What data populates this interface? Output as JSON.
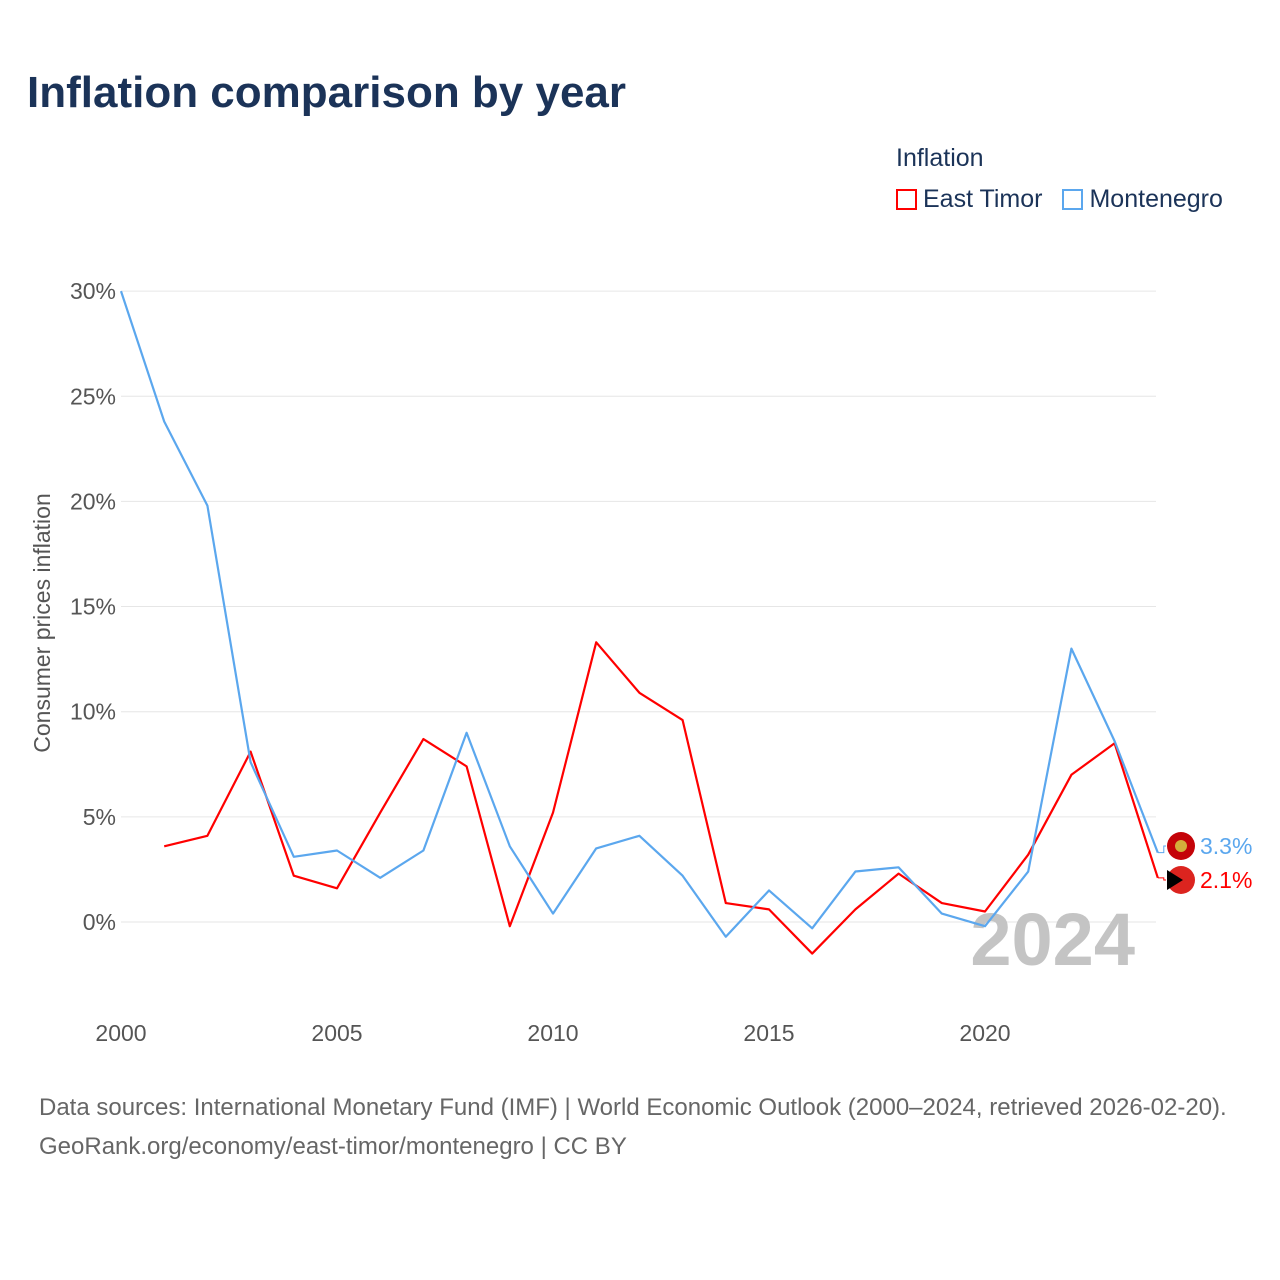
{
  "chart_data": {
    "type": "line",
    "title": "Inflation comparison by year",
    "legend_title": "Inflation",
    "legend_position": "top-right",
    "ylabel": "Consumer prices inflation",
    "xlabel": "",
    "xlim": [
      2000,
      2024
    ],
    "ylim": [
      -3.5,
      30
    ],
    "x_ticks": [
      2000,
      2005,
      2010,
      2015,
      2020
    ],
    "x_tick_labels": [
      "2000",
      "2005",
      "2010",
      "2015",
      "2020"
    ],
    "y_ticks": [
      0,
      5,
      10,
      15,
      20,
      25,
      30
    ],
    "y_tick_labels": [
      "0%",
      "5%",
      "10%",
      "15%",
      "20%",
      "25%",
      "30%"
    ],
    "grid": true,
    "year_watermark": "2024",
    "series": [
      {
        "name": "East Timor",
        "color": "#ff0000",
        "end_label": "2.1%",
        "x": [
          2001,
          2002,
          2003,
          2004,
          2005,
          2006,
          2007,
          2008,
          2009,
          2010,
          2011,
          2012,
          2013,
          2014,
          2015,
          2016,
          2017,
          2018,
          2019,
          2020,
          2021,
          2022,
          2023,
          2024
        ],
        "values": [
          3.6,
          4.1,
          8.1,
          2.2,
          1.6,
          5.2,
          8.7,
          7.4,
          -0.2,
          5.2,
          13.3,
          10.9,
          9.6,
          0.9,
          0.6,
          -1.5,
          0.6,
          2.3,
          0.9,
          0.5,
          3.2,
          7.0,
          8.5,
          2.1
        ]
      },
      {
        "name": "Montenegro",
        "color": "#5ba7ee",
        "end_label": "3.3%",
        "x": [
          2000,
          2001,
          2002,
          2003,
          2004,
          2005,
          2006,
          2007,
          2008,
          2009,
          2010,
          2011,
          2012,
          2013,
          2014,
          2015,
          2016,
          2017,
          2018,
          2019,
          2020,
          2021,
          2022,
          2023,
          2024
        ],
        "values": [
          30.0,
          23.8,
          19.8,
          7.6,
          3.1,
          3.4,
          2.1,
          3.4,
          9.0,
          3.6,
          0.4,
          3.5,
          4.1,
          2.2,
          -0.7,
          1.5,
          -0.3,
          2.4,
          2.6,
          0.4,
          -0.2,
          2.4,
          13.0,
          8.6,
          3.3
        ]
      }
    ]
  },
  "footer": {
    "sources": "Data sources: International Monetary Fund (IMF) | World Economic Outlook (2000–2024, retrieved 2026-02-20).",
    "link": "GeoRank.org/economy/east-timor/montenegro | CC BY"
  }
}
